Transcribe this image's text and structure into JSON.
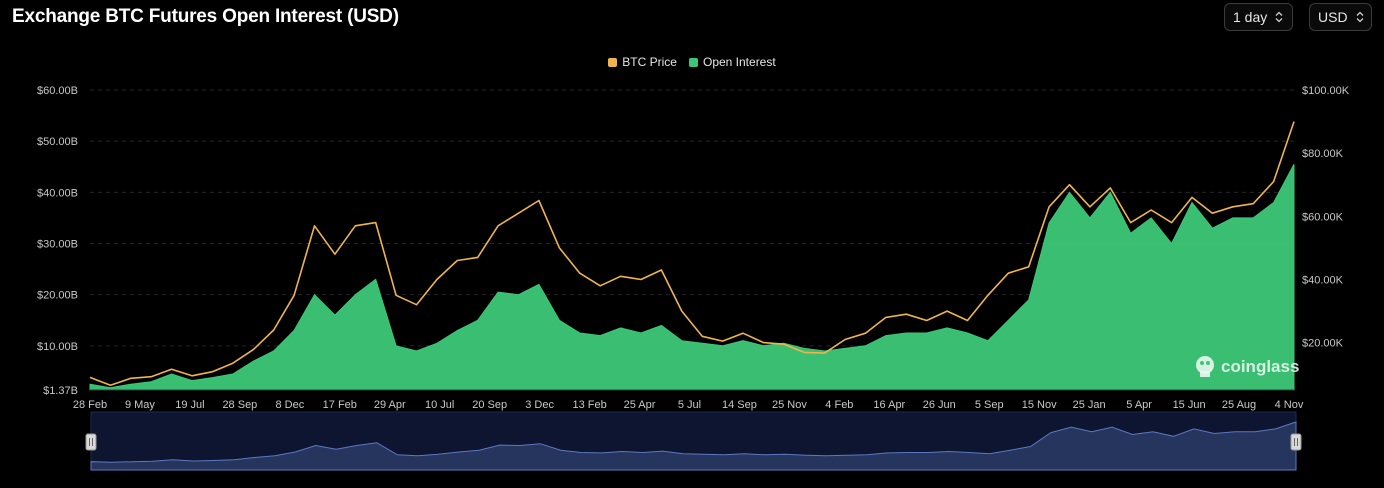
{
  "header": {
    "title": "Exchange BTC Futures Open Interest (USD)",
    "interval_select": "1 day",
    "currency_select": "USD"
  },
  "watermark": {
    "text": "coinglass"
  },
  "colors": {
    "btc_price": "#f0b54a",
    "open_interest": "#3cc878",
    "navigator_fill": "#26355e",
    "navigator_line": "#5b78c2"
  },
  "chart_data": {
    "type": "area",
    "legend_placement": "top-center",
    "title": "Exchange BTC Futures Open Interest (USD)",
    "x_ticks": [
      "28 Feb",
      "9 May",
      "19 Jul",
      "28 Sep",
      "8 Dec",
      "17 Feb",
      "29 Apr",
      "10 Jul",
      "20 Sep",
      "3 Dec",
      "13 Feb",
      "25 Apr",
      "5 Jul",
      "14 Sep",
      "25 Nov",
      "4 Feb",
      "16 Apr",
      "26 Jun",
      "5 Sep",
      "15 Nov",
      "25 Jan",
      "5 Apr",
      "15 Jun",
      "25 Aug",
      "4 Nov"
    ],
    "y_left_ticks": [
      "$1.37B",
      "$10.00B",
      "$20.00B",
      "$30.00B",
      "$40.00B",
      "$50.00B",
      "$60.00B"
    ],
    "y_left_values": [
      1.37,
      10,
      20,
      30,
      40,
      50,
      60
    ],
    "y_left_range": [
      1.37,
      60
    ],
    "y_right_ticks": [
      "$20.00K",
      "$40.00K",
      "$60.00K",
      "$80.00K",
      "$100.00K"
    ],
    "y_right_values": [
      20,
      40,
      60,
      80,
      100
    ],
    "y_right_range": [
      5,
      100
    ],
    "series": [
      {
        "name": "BTC Price",
        "axis": "right",
        "unit": "K USD",
        "values": [
          9.0,
          6.5,
          8.7,
          9.2,
          11.6,
          9.5,
          10.8,
          13.5,
          17.8,
          24.0,
          35.0,
          57.0,
          48.0,
          57.0,
          58.0,
          35.0,
          32.0,
          40.0,
          46.0,
          47.0,
          57.0,
          61.0,
          65.0,
          50.0,
          42.0,
          38.0,
          41.0,
          40.0,
          43.0,
          30.0,
          22.0,
          20.5,
          23.0,
          20.0,
          19.5,
          16.9,
          16.7,
          21.0,
          23.0,
          28.0,
          29.0,
          27.0,
          30.0,
          27.0,
          35.0,
          42.0,
          44.0,
          63.0,
          70.0,
          63.0,
          69.0,
          58.0,
          62.0,
          58.0,
          66.0,
          61.0,
          63.0,
          64.0,
          71.0,
          90.0
        ]
      },
      {
        "name": "Open Interest",
        "axis": "left",
        "unit": "B USD",
        "values": [
          2.5,
          1.8,
          2.5,
          3.0,
          4.5,
          3.2,
          3.8,
          4.5,
          7.0,
          9.0,
          13.0,
          20.0,
          16.0,
          20.0,
          23.0,
          10.0,
          9.0,
          10.5,
          13.0,
          15.0,
          20.5,
          20.0,
          22.0,
          15.0,
          12.5,
          12.0,
          13.5,
          12.5,
          14.0,
          11.0,
          10.5,
          10.0,
          11.0,
          10.0,
          10.5,
          9.5,
          9.0,
          9.5,
          10.0,
          12.0,
          12.5,
          12.5,
          13.5,
          12.5,
          11.0,
          15.0,
          19.0,
          34.0,
          40.0,
          35.0,
          40.0,
          32.0,
          35.0,
          30.0,
          38.0,
          33.0,
          35.0,
          35.0,
          38.0,
          45.5
        ]
      }
    ]
  }
}
